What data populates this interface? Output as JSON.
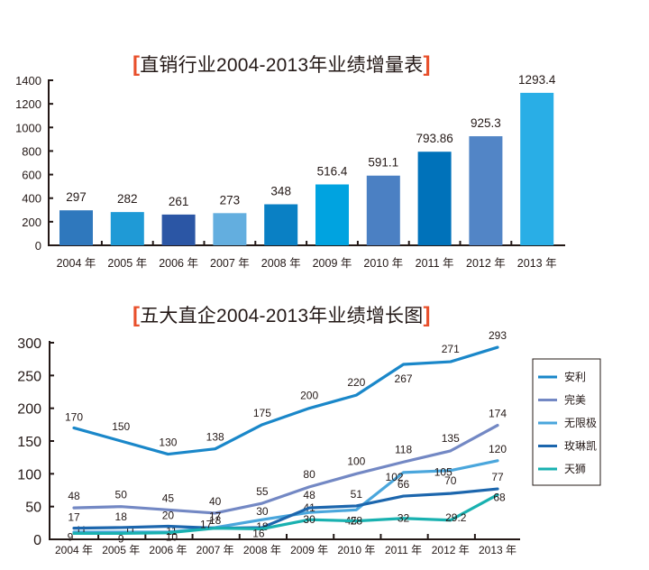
{
  "chart_data": [
    {
      "type": "bar",
      "title": "直销行业2004-2013年业绩增量表",
      "categories": [
        "2004 年",
        "2005 年",
        "2006 年",
        "2007 年",
        "2008 年",
        "2009 年",
        "2010 年",
        "2011 年",
        "2012 年",
        "2013 年"
      ],
      "values": [
        297,
        282,
        261,
        273,
        348,
        516.4,
        591.1,
        793.86,
        925.3,
        1293.4
      ],
      "value_labels": [
        "297",
        "282",
        "261",
        "273",
        "348",
        "516.4",
        "591.1",
        "793.86",
        "925.3",
        "1293.4"
      ],
      "bar_colors": [
        "#2f78bd",
        "#1f9ad6",
        "#2b56a5",
        "#63aedf",
        "#0a80c4",
        "#00a3e0",
        "#4b80c3",
        "#0072ba",
        "#5285c6",
        "#29aee6"
      ],
      "xlabel": "",
      "ylabel": "",
      "ylim": [
        0,
        1400
      ],
      "yticks": [
        0,
        200,
        400,
        600,
        800,
        1000,
        1200,
        1400
      ],
      "ytick_labels": [
        "0",
        "200",
        "400",
        "600",
        "800",
        "1000",
        "1200",
        "1400"
      ],
      "grid": false
    },
    {
      "type": "line",
      "title": "五大直企2004-2013年业绩增长图",
      "categories": [
        "2004 年",
        "2005 年",
        "2006 年",
        "2007 年",
        "2008 年",
        "2009 年",
        "2010 年",
        "2011 年",
        "2012 年",
        "2013 年"
      ],
      "series": [
        {
          "name": "安利",
          "color": "#1a87c9",
          "values": [
            170,
            150,
            130,
            138,
            175,
            200,
            220,
            267,
            271,
            293
          ],
          "labels": [
            "170",
            "150",
            "130",
            "138",
            "175",
            "200",
            "220",
            "267",
            "271",
            "293"
          ]
        },
        {
          "name": "完美",
          "color": "#7388c4",
          "values": [
            48,
            50,
            45,
            40,
            55,
            80,
            100,
            118,
            135,
            174
          ],
          "labels": [
            "48",
            "50",
            "45",
            "40",
            "55",
            "80",
            "100",
            "118",
            "135",
            "174"
          ]
        },
        {
          "name": "无限极",
          "color": "#4aa6dc",
          "values": [
            11,
            11,
            11,
            18,
            30,
            41,
            45,
            102,
            105,
            120
          ],
          "labels": [
            "11",
            "11",
            "11",
            "18",
            "30",
            "41",
            "45",
            "102",
            "105",
            "120"
          ]
        },
        {
          "name": "玫琳凯",
          "color": "#1c66ad",
          "values": [
            17,
            18,
            20,
            17,
            18,
            48,
            51,
            66,
            70,
            77
          ],
          "labels": [
            "17",
            "18",
            "20",
            "17",
            "18",
            "48",
            "51",
            "66",
            "70",
            "77"
          ]
        },
        {
          "name": "天狮",
          "color": "#19b1b0",
          "values": [
            9,
            9,
            10,
            17,
            16,
            30,
            28,
            32,
            29.2,
            68
          ],
          "labels": [
            "9",
            "9",
            "10",
            "17",
            "16",
            "30",
            "28",
            "32",
            "29.2",
            "68"
          ]
        }
      ],
      "xlabel": "",
      "ylabel": "",
      "ylim": [
        0,
        300
      ],
      "yticks": [
        0,
        50,
        100,
        150,
        200,
        250,
        300
      ],
      "ytick_labels": [
        "0",
        "50",
        "100",
        "150",
        "200",
        "250",
        "300"
      ],
      "legend": "right",
      "grid": false
    }
  ],
  "titles": {
    "bar": "直销行业2004-2013年业绩增量表",
    "line": "五大直企2004-2013年业绩增长图",
    "bracket_open": "[",
    "bracket_close": "]"
  }
}
